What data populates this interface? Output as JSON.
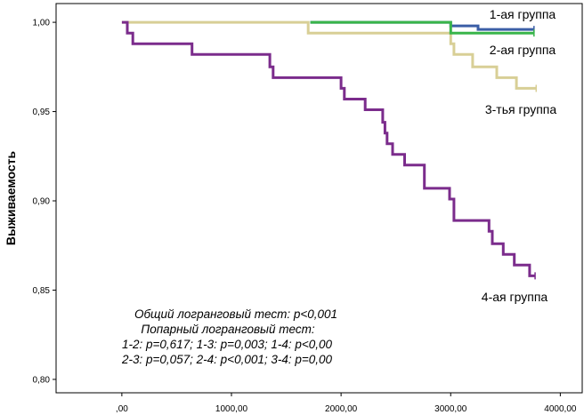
{
  "chart_data": {
    "type": "line",
    "title": "",
    "xlabel": "",
    "ylabel": "Выживаемость",
    "xlim": [
      -600,
      4200
    ],
    "ylim": [
      0.7925,
      1.0105
    ],
    "x_ticks": [
      0,
      1000,
      2000,
      3000,
      4000
    ],
    "x_tick_labels": [
      ",00",
      "1000,00",
      "2000,00",
      "3000,00",
      "4000,00"
    ],
    "y_ticks": [
      0.8,
      0.85,
      0.9,
      0.95,
      1.0
    ],
    "y_tick_labels": [
      "0,80",
      "0,85",
      "0,90",
      "0,95",
      "1,00"
    ],
    "grid": false,
    "legend": "none",
    "series": [
      {
        "name": "3-тья группа",
        "color": "#d8cf96",
        "x": [
          0,
          1700,
          1700,
          3000,
          3000,
          3030,
          3030,
          3200,
          3200,
          3420,
          3420,
          3600,
          3600,
          3780
        ],
        "y": [
          1.0,
          1.0,
          0.994,
          0.994,
          0.988,
          0.988,
          0.982,
          0.982,
          0.975,
          0.975,
          0.969,
          0.969,
          0.963,
          0.963
        ]
      },
      {
        "name": "1-ая группа",
        "color": "#3b5ea6",
        "x": [
          1720,
          3000,
          3000,
          3250,
          3250,
          3760
        ],
        "y": [
          1.0,
          1.0,
          0.998,
          0.998,
          0.996,
          0.996
        ]
      },
      {
        "name": "2-ая группа",
        "color": "#39b54a",
        "x": [
          1720,
          3000,
          3000,
          3760
        ],
        "y": [
          1.0,
          1.0,
          0.994,
          0.994
        ]
      },
      {
        "name": "4-ая группа",
        "color": "#7b2c8c",
        "x": [
          0,
          50,
          50,
          100,
          100,
          640,
          640,
          1350,
          1350,
          1380,
          1380,
          2000,
          2000,
          2030,
          2030,
          2220,
          2220,
          2380,
          2380,
          2400,
          2400,
          2420,
          2420,
          2470,
          2470,
          2580,
          2580,
          2760,
          2760,
          2990,
          2990,
          3030,
          3030,
          3350,
          3350,
          3380,
          3380,
          3480,
          3480,
          3580,
          3580,
          3720,
          3720,
          3770
        ],
        "y": [
          1.0,
          1.0,
          0.994,
          0.994,
          0.988,
          0.988,
          0.982,
          0.982,
          0.975,
          0.975,
          0.969,
          0.969,
          0.963,
          0.963,
          0.957,
          0.957,
          0.951,
          0.951,
          0.944,
          0.944,
          0.938,
          0.938,
          0.932,
          0.932,
          0.926,
          0.926,
          0.92,
          0.92,
          0.907,
          0.907,
          0.901,
          0.901,
          0.889,
          0.889,
          0.883,
          0.883,
          0.876,
          0.876,
          0.87,
          0.87,
          0.864,
          0.864,
          0.858,
          0.858
        ]
      }
    ],
    "annotations": [
      "Общий логранговый тест: p<0,001",
      "Попарный логранговый тест:",
      "1-2: p=0,617; 1-3: p=0,003; 1-4: p<0,00",
      "2-3: p=0,057; 2-4: p<0,001; 3-4: p=0,00"
    ]
  }
}
